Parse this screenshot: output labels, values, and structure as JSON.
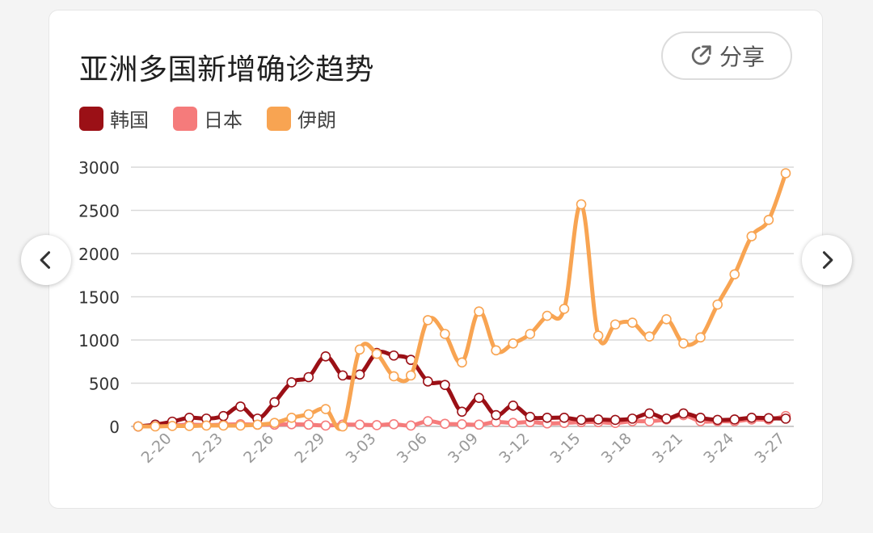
{
  "card": {
    "title": "亚洲多国新增确诊趋势",
    "share_label": "分享"
  },
  "legend": [
    {
      "label": "韩国",
      "color": "#9b1016"
    },
    {
      "label": "日本",
      "color": "#f57b7b"
    },
    {
      "label": "伊朗",
      "color": "#f8a452"
    }
  ],
  "nav": {
    "prev_icon": "chevron-left-icon",
    "next_icon": "chevron-right-icon"
  },
  "chart_data": {
    "type": "line",
    "title": "亚洲多国新增确诊趋势",
    "xlabel": "",
    "ylabel": "",
    "ylim": [
      0,
      3000
    ],
    "yticks": [
      0,
      500,
      1000,
      1500,
      2000,
      2500,
      3000
    ],
    "x": [
      "2-18",
      "2-19",
      "2-20",
      "2-21",
      "2-22",
      "2-23",
      "2-24",
      "2-25",
      "2-26",
      "2-27",
      "2-28",
      "2-29",
      "3-01",
      "3-02",
      "3-03",
      "3-04",
      "3-05",
      "3-06",
      "3-07",
      "3-08",
      "3-09",
      "3-10",
      "3-11",
      "3-12",
      "3-13",
      "3-14",
      "3-15",
      "3-16",
      "3-17",
      "3-18",
      "3-19",
      "3-20",
      "3-21",
      "3-22",
      "3-23",
      "3-24",
      "3-25",
      "3-26",
      "3-27"
    ],
    "xtick_labels": [
      "2-20",
      "2-23",
      "2-26",
      "2-29",
      "3-03",
      "3-06",
      "3-09",
      "3-12",
      "3-15",
      "3-18",
      "3-21",
      "3-24",
      "3-27"
    ],
    "grid": true,
    "legend_position": "top-left",
    "series": [
      {
        "name": "韩国",
        "color": "#9b1016",
        "values": [
          0,
          20,
          55,
          100,
          90,
          120,
          230,
          90,
          280,
          510,
          570,
          810,
          590,
          600,
          850,
          820,
          770,
          520,
          480,
          170,
          330,
          130,
          240,
          110,
          100,
          100,
          75,
          80,
          75,
          90,
          150,
          90,
          150,
          100,
          75,
          80,
          100,
          95,
          90
        ]
      },
      {
        "name": "日本",
        "color": "#f57b7b",
        "values": [
          0,
          5,
          10,
          20,
          15,
          20,
          25,
          20,
          20,
          25,
          20,
          10,
          20,
          20,
          15,
          25,
          10,
          60,
          30,
          25,
          20,
          50,
          40,
          50,
          35,
          40,
          50,
          50,
          40,
          60,
          60,
          80,
          130,
          60,
          60,
          60,
          80,
          80,
          120
        ]
      },
      {
        "name": "伊朗",
        "color": "#f8a452",
        "values": [
          0,
          0,
          5,
          5,
          10,
          10,
          10,
          20,
          40,
          100,
          140,
          200,
          0,
          890,
          840,
          580,
          590,
          1230,
          1070,
          740,
          1330,
          880,
          960,
          1070,
          1280,
          1360,
          2570,
          1050,
          1180,
          1200,
          1040,
          1240,
          960,
          1030,
          1410,
          1760,
          2200,
          2390,
          2930
        ]
      }
    ]
  }
}
